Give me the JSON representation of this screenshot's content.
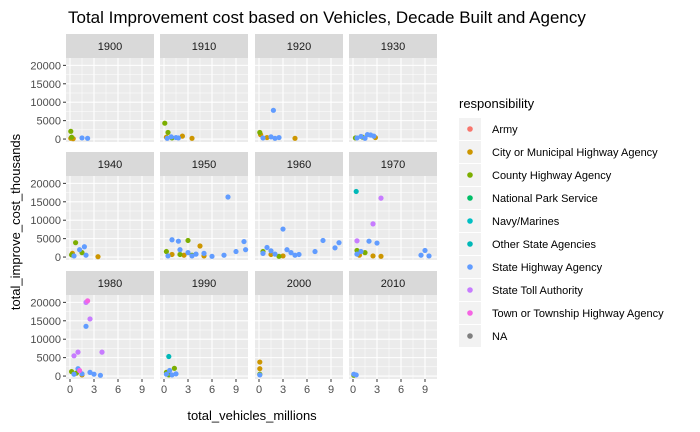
{
  "chart_data": {
    "type": "scatter",
    "title": "Total Improvement cost based on Vehicles, Decade Built and Agency",
    "xlabel": "total_vehicles_millions",
    "ylabel": "total_improve_cost_thousands",
    "xlim": [
      -0.5,
      10.5
    ],
    "ylim": [
      -800,
      22000
    ],
    "x_ticks": [
      0,
      3,
      6,
      9
    ],
    "y_ticks": [
      0,
      5000,
      10000,
      15000,
      20000
    ],
    "grid": true,
    "facet_by": "decade",
    "facets": [
      "1900",
      "1910",
      "1920",
      "1930",
      "1940",
      "1950",
      "1960",
      "1970",
      "1980",
      "1990",
      "2000",
      "2010"
    ],
    "legend": {
      "title": "responsibility",
      "position": "right",
      "entries": [
        {
          "name": "Army",
          "color": "#F8766D"
        },
        {
          "name": "City or Municipal Highway Agency",
          "color": "#CD9600"
        },
        {
          "name": "County Highway Agency",
          "color": "#7CAE00"
        },
        {
          "name": "National Park Service",
          "color": "#00BE67"
        },
        {
          "name": "Navy/Marines",
          "color": "#00BFC4"
        },
        {
          "name": "Other State Agencies",
          "color": "#00B8B8"
        },
        {
          "name": "State Highway Agency",
          "color": "#619CFF"
        },
        {
          "name": "State Toll Authority",
          "color": "#C77CFF"
        },
        {
          "name": "Town or Township Highway Agency",
          "color": "#F564E3"
        },
        {
          "name": "NA",
          "color": "#7F7F7F"
        }
      ]
    },
    "series": [
      {
        "name": "City or Municipal Highway Agency",
        "color": "#CD9600",
        "points": [
          {
            "facet": "1900",
            "x": 0.1,
            "y": 200
          },
          {
            "facet": "1900",
            "x": 0.4,
            "y": 100
          },
          {
            "facet": "1910",
            "x": 0.3,
            "y": 500
          },
          {
            "facet": "1910",
            "x": 2.3,
            "y": 800
          },
          {
            "facet": "1910",
            "x": 3.5,
            "y": 200
          },
          {
            "facet": "1920",
            "x": 0.2,
            "y": 1200
          },
          {
            "facet": "1920",
            "x": 1.0,
            "y": 400
          },
          {
            "facet": "1920",
            "x": 4.5,
            "y": 200
          },
          {
            "facet": "1930",
            "x": 2.8,
            "y": 400
          },
          {
            "facet": "1940",
            "x": 0.3,
            "y": 1000
          },
          {
            "facet": "1940",
            "x": 3.5,
            "y": 100
          },
          {
            "facet": "1950",
            "x": 1.0,
            "y": 700
          },
          {
            "facet": "1950",
            "x": 2.5,
            "y": 500
          },
          {
            "facet": "1950",
            "x": 4.5,
            "y": 3000
          },
          {
            "facet": "1950",
            "x": 5.0,
            "y": 300
          },
          {
            "facet": "1960",
            "x": 1.5,
            "y": 700
          },
          {
            "facet": "1960",
            "x": 3.0,
            "y": 300
          },
          {
            "facet": "1970",
            "x": 0.8,
            "y": 500
          },
          {
            "facet": "1970",
            "x": 2.5,
            "y": 300
          },
          {
            "facet": "1970",
            "x": 3.5,
            "y": 200
          },
          {
            "facet": "1980",
            "x": 1.5,
            "y": 300
          },
          {
            "facet": "2000",
            "x": 0.1,
            "y": 3800
          },
          {
            "facet": "2000",
            "x": 0.1,
            "y": 2000
          }
        ]
      },
      {
        "name": "County Highway Agency",
        "color": "#7CAE00",
        "points": [
          {
            "facet": "1900",
            "x": 0.1,
            "y": 2100
          },
          {
            "facet": "1900",
            "x": 0.2,
            "y": 500
          },
          {
            "facet": "1910",
            "x": 0.1,
            "y": 4300
          },
          {
            "facet": "1910",
            "x": 0.5,
            "y": 1800
          },
          {
            "facet": "1910",
            "x": 1.0,
            "y": 300
          },
          {
            "facet": "1920",
            "x": 0.1,
            "y": 1800
          },
          {
            "facet": "1930",
            "x": 0.3,
            "y": 300
          },
          {
            "facet": "1930",
            "x": 1.2,
            "y": 500
          },
          {
            "facet": "1940",
            "x": 0.2,
            "y": 600
          },
          {
            "facet": "1940",
            "x": 0.7,
            "y": 3900
          },
          {
            "facet": "1940",
            "x": 1.5,
            "y": 1200
          },
          {
            "facet": "1950",
            "x": 0.3,
            "y": 1500
          },
          {
            "facet": "1950",
            "x": 2.0,
            "y": 700
          },
          {
            "facet": "1950",
            "x": 3.0,
            "y": 4500
          },
          {
            "facet": "1950",
            "x": 3.5,
            "y": 500
          },
          {
            "facet": "1960",
            "x": 0.5,
            "y": 1500
          },
          {
            "facet": "1960",
            "x": 2.5,
            "y": 200
          },
          {
            "facet": "1970",
            "x": 0.5,
            "y": 1800
          },
          {
            "facet": "1970",
            "x": 1.5,
            "y": 1200
          },
          {
            "facet": "1980",
            "x": 0.2,
            "y": 1200
          },
          {
            "facet": "1980",
            "x": 0.8,
            "y": 800
          },
          {
            "facet": "1990",
            "x": 0.3,
            "y": 1000
          },
          {
            "facet": "1990",
            "x": 0.6,
            "y": 300
          },
          {
            "facet": "1990",
            "x": 1.3,
            "y": 2100
          },
          {
            "facet": "2000",
            "x": 0.1,
            "y": 500
          },
          {
            "facet": "2010",
            "x": 0.1,
            "y": 200
          }
        ]
      },
      {
        "name": "Other State Agencies",
        "color": "#00B8B8",
        "points": [
          {
            "facet": "1970",
            "x": 0.4,
            "y": 17800
          },
          {
            "facet": "1990",
            "x": 0.6,
            "y": 5300
          }
        ]
      },
      {
        "name": "State Highway Agency",
        "color": "#619CFF",
        "points": [
          {
            "facet": "1900",
            "x": 1.5,
            "y": 300
          },
          {
            "facet": "1900",
            "x": 2.2,
            "y": 200
          },
          {
            "facet": "1910",
            "x": 0.4,
            "y": 200
          },
          {
            "facet": "1910",
            "x": 0.9,
            "y": 600
          },
          {
            "facet": "1910",
            "x": 1.5,
            "y": 400
          },
          {
            "facet": "1910",
            "x": 1.8,
            "y": 300
          },
          {
            "facet": "1920",
            "x": 1.8,
            "y": 7800
          },
          {
            "facet": "1920",
            "x": 0.5,
            "y": 300
          },
          {
            "facet": "1920",
            "x": 1.5,
            "y": 600
          },
          {
            "facet": "1920",
            "x": 2.0,
            "y": 200
          },
          {
            "facet": "1920",
            "x": 2.5,
            "y": 400
          },
          {
            "facet": "1930",
            "x": 0.5,
            "y": 300
          },
          {
            "facet": "1930",
            "x": 1.0,
            "y": 700
          },
          {
            "facet": "1930",
            "x": 1.8,
            "y": 1200
          },
          {
            "facet": "1930",
            "x": 2.2,
            "y": 1100
          },
          {
            "facet": "1930",
            "x": 2.6,
            "y": 800
          },
          {
            "facet": "1930",
            "x": 1.5,
            "y": 200
          },
          {
            "facet": "1940",
            "x": 0.5,
            "y": 300
          },
          {
            "facet": "1940",
            "x": 1.2,
            "y": 2000
          },
          {
            "facet": "1940",
            "x": 1.8,
            "y": 2800
          },
          {
            "facet": "1940",
            "x": 2.0,
            "y": 500
          },
          {
            "facet": "1950",
            "x": 0.5,
            "y": 300
          },
          {
            "facet": "1950",
            "x": 1.0,
            "y": 4700
          },
          {
            "facet": "1950",
            "x": 1.8,
            "y": 4300
          },
          {
            "facet": "1950",
            "x": 2.0,
            "y": 2000
          },
          {
            "facet": "1950",
            "x": 3.0,
            "y": 1200
          },
          {
            "facet": "1950",
            "x": 4.0,
            "y": 800
          },
          {
            "facet": "1950",
            "x": 5.0,
            "y": 1000
          },
          {
            "facet": "1950",
            "x": 6.0,
            "y": 200
          },
          {
            "facet": "1950",
            "x": 7.5,
            "y": 500
          },
          {
            "facet": "1950",
            "x": 8.0,
            "y": 16300
          },
          {
            "facet": "1950",
            "x": 9.0,
            "y": 1500
          },
          {
            "facet": "1950",
            "x": 10.0,
            "y": 4200
          },
          {
            "facet": "1950",
            "x": 10.2,
            "y": 2000
          },
          {
            "facet": "1950",
            "x": 3.5,
            "y": 300
          },
          {
            "facet": "1960",
            "x": 0.5,
            "y": 1000
          },
          {
            "facet": "1960",
            "x": 1.0,
            "y": 2600
          },
          {
            "facet": "1960",
            "x": 1.5,
            "y": 1700
          },
          {
            "facet": "1960",
            "x": 2.0,
            "y": 800
          },
          {
            "facet": "1960",
            "x": 3.0,
            "y": 7600
          },
          {
            "facet": "1960",
            "x": 3.5,
            "y": 2000
          },
          {
            "facet": "1960",
            "x": 4.0,
            "y": 1200
          },
          {
            "facet": "1960",
            "x": 4.5,
            "y": 500
          },
          {
            "facet": "1960",
            "x": 5.0,
            "y": 700
          },
          {
            "facet": "1960",
            "x": 7.0,
            "y": 1500
          },
          {
            "facet": "1960",
            "x": 8.0,
            "y": 4500
          },
          {
            "facet": "1960",
            "x": 9.5,
            "y": 2500
          },
          {
            "facet": "1960",
            "x": 10.0,
            "y": 3900
          },
          {
            "facet": "1970",
            "x": 0.5,
            "y": 800
          },
          {
            "facet": "1970",
            "x": 1.0,
            "y": 1500
          },
          {
            "facet": "1970",
            "x": 2.0,
            "y": 4300
          },
          {
            "facet": "1970",
            "x": 3.0,
            "y": 3800
          },
          {
            "facet": "1970",
            "x": 8.5,
            "y": 500
          },
          {
            "facet": "1970",
            "x": 9.0,
            "y": 1800
          },
          {
            "facet": "1970",
            "x": 9.5,
            "y": 300
          },
          {
            "facet": "1980",
            "x": 0.5,
            "y": 500
          },
          {
            "facet": "1980",
            "x": 1.0,
            "y": 2000
          },
          {
            "facet": "1980",
            "x": 1.5,
            "y": 600
          },
          {
            "facet": "1980",
            "x": 2.0,
            "y": 13500
          },
          {
            "facet": "1980",
            "x": 2.5,
            "y": 1000
          },
          {
            "facet": "1980",
            "x": 3.0,
            "y": 500
          },
          {
            "facet": "1980",
            "x": 3.8,
            "y": 200
          },
          {
            "facet": "1990",
            "x": 0.3,
            "y": 500
          },
          {
            "facet": "1990",
            "x": 0.7,
            "y": 1500
          },
          {
            "facet": "1990",
            "x": 1.0,
            "y": 300
          },
          {
            "facet": "1990",
            "x": 1.5,
            "y": 600
          },
          {
            "facet": "2000",
            "x": 0.1,
            "y": 300
          },
          {
            "facet": "2010",
            "x": 0.1,
            "y": 500
          },
          {
            "facet": "2010",
            "x": 0.4,
            "y": 300
          }
        ]
      },
      {
        "name": "State Toll Authority",
        "color": "#C77CFF",
        "points": [
          {
            "facet": "1970",
            "x": 0.5,
            "y": 4400
          },
          {
            "facet": "1970",
            "x": 2.5,
            "y": 9000
          },
          {
            "facet": "1970",
            "x": 3.5,
            "y": 16000
          },
          {
            "facet": "1980",
            "x": 1.0,
            "y": 6500
          },
          {
            "facet": "1980",
            "x": 2.0,
            "y": 20000
          },
          {
            "facet": "1980",
            "x": 2.5,
            "y": 15500
          },
          {
            "facet": "1980",
            "x": 4.0,
            "y": 6500
          },
          {
            "facet": "1980",
            "x": 0.5,
            "y": 5500
          }
        ]
      },
      {
        "name": "Town or Township Highway Agency",
        "color": "#F564E3",
        "points": [
          {
            "facet": "1980",
            "x": 2.2,
            "y": 20400
          },
          {
            "facet": "1980",
            "x": 1.2,
            "y": 1500
          }
        ]
      }
    ]
  }
}
